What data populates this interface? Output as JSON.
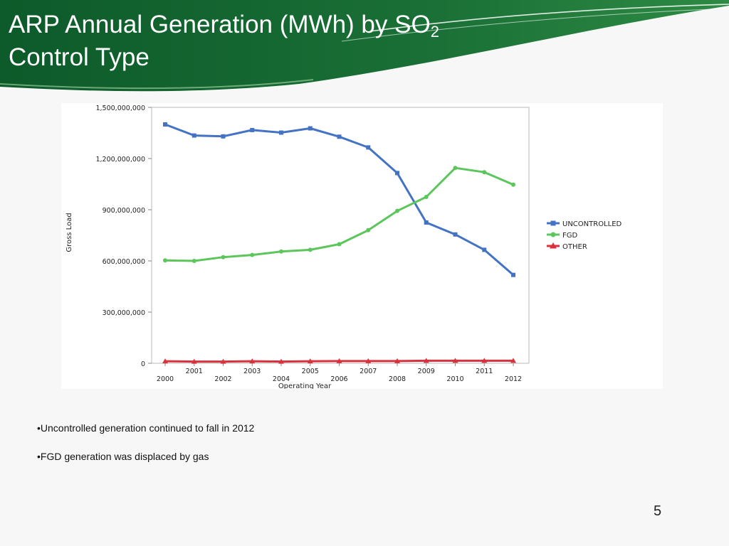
{
  "slide": {
    "title_line1_text": "ARP Annual Generation (MWh) by SO",
    "title_subscript": "2",
    "title_line2": "Control Type",
    "bullets": [
      "•Uncontrolled generation continued to fall in 2012",
      "•FGD generation was displaced by gas"
    ],
    "page_number": "5"
  },
  "colors": {
    "banner_dark": "#0d5a2a",
    "banner_mid": "#1f7a3a",
    "uncontrolled": "#4472c4",
    "fgd": "#5cc65c",
    "other": "#d8323c"
  },
  "chart_data": {
    "type": "line",
    "xlabel": "Operating Year",
    "ylabel": "Gross Load",
    "x": [
      2000,
      2001,
      2002,
      2003,
      2004,
      2005,
      2006,
      2007,
      2008,
      2009,
      2010,
      2011,
      2012
    ],
    "x_tick_labels": [
      "2000",
      "2001",
      "2002",
      "2003",
      "2004",
      "2005",
      "2006",
      "2007",
      "2008",
      "2009",
      "2010",
      "2011",
      "2012"
    ],
    "ylim": [
      0,
      1500000000
    ],
    "y_ticks": [
      0,
      300000000,
      600000000,
      900000000,
      1200000000,
      1500000000
    ],
    "y_tick_labels": [
      "0",
      "300,000,000",
      "600,000,000",
      "900,000,000",
      "1,200,000,000",
      "1,500,000,000"
    ],
    "legend_position": "right",
    "grid": false,
    "series": [
      {
        "name": "UNCONTROLLED",
        "color": "#4472c4",
        "marker": "square",
        "values": [
          1400000000,
          1335000000,
          1330000000,
          1367000000,
          1352000000,
          1377000000,
          1328000000,
          1265000000,
          1115000000,
          825000000,
          755000000,
          665000000,
          518000000
        ]
      },
      {
        "name": "FGD",
        "color": "#5cc65c",
        "marker": "circle",
        "values": [
          603000000,
          600000000,
          622000000,
          635000000,
          655000000,
          665000000,
          698000000,
          780000000,
          893000000,
          975000000,
          1145000000,
          1120000000,
          1047000000
        ]
      },
      {
        "name": "OTHER",
        "color": "#d8323c",
        "marker": "triangle",
        "values": [
          12000000,
          10000000,
          10000000,
          12000000,
          10000000,
          12000000,
          13000000,
          13000000,
          13000000,
          15000000,
          15000000,
          15000000,
          15000000
        ]
      }
    ]
  }
}
